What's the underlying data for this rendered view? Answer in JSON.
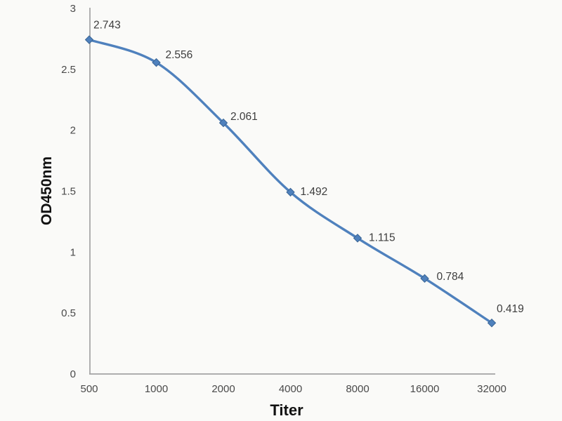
{
  "chart_data": {
    "type": "line",
    "title": "",
    "xlabel": "Titer",
    "ylabel": "OD450nm",
    "categories": [
      "500",
      "1000",
      "2000",
      "4000",
      "8000",
      "16000",
      "32000"
    ],
    "series": [
      {
        "name": "OD450nm",
        "values": [
          2.743,
          2.556,
          2.061,
          1.492,
          1.115,
          0.784,
          0.419
        ],
        "point_labels": [
          "2.743",
          "2.556",
          "2.061",
          "1.492",
          "1.115",
          "0.784",
          "0.419"
        ]
      }
    ],
    "ylim": [
      0,
      3
    ],
    "ytick_values": [
      3,
      2.5,
      2,
      1.5,
      1,
      0.5,
      0
    ],
    "ytick_labels": [
      "3",
      "2.5",
      "2",
      "1.5",
      "1",
      "0.5",
      "0"
    ],
    "grid": false,
    "legend": "none",
    "line_style": "smooth",
    "marker": "diamond",
    "colors": {
      "line": "#4F81BD",
      "marker_fill": "#4F81BD",
      "marker_edge": "#3A6595",
      "axis_line": "#a3a3a3",
      "tick_label": "#4a4a4a",
      "data_label": "#3d3d3d",
      "axis_title": "#111111",
      "background": "#fafaf8"
    }
  }
}
